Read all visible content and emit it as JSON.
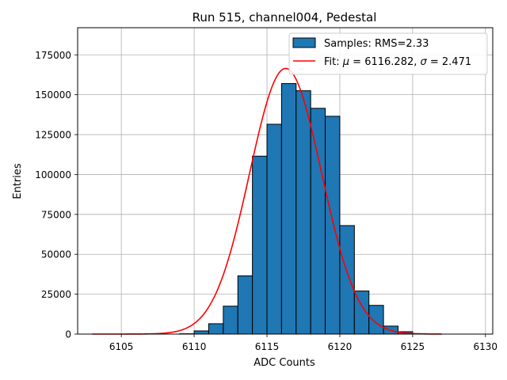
{
  "chart_data": {
    "type": "bar",
    "title": "Run 515, channel004, Pedestal",
    "xlabel": "ADC Counts",
    "ylabel": "Entries",
    "xlim": [
      6102,
      6130.5
    ],
    "ylim": [
      0,
      192000
    ],
    "xticks": [
      6105,
      6110,
      6115,
      6120,
      6125,
      6130
    ],
    "yticks": [
      0,
      25000,
      50000,
      75000,
      100000,
      125000,
      150000,
      175000
    ],
    "grid": true,
    "legend_position": "top-right",
    "bar_color": "#1f77b4",
    "fit_color": "#ff0000",
    "bins": [
      {
        "left": 6109,
        "right": 6110,
        "count": 200
      },
      {
        "left": 6110,
        "right": 6111,
        "count": 2000
      },
      {
        "left": 6111,
        "right": 6112,
        "count": 6500
      },
      {
        "left": 6112,
        "right": 6113,
        "count": 17500
      },
      {
        "left": 6113,
        "right": 6114,
        "count": 36500
      },
      {
        "left": 6114,
        "right": 6115,
        "count": 111500
      },
      {
        "left": 6115,
        "right": 6116,
        "count": 131500
      },
      {
        "left": 6116,
        "right": 6117,
        "count": 157000
      },
      {
        "left": 6117,
        "right": 6118,
        "count": 152500
      },
      {
        "left": 6118,
        "right": 6119,
        "count": 141500
      },
      {
        "left": 6119,
        "right": 6120,
        "count": 136500
      },
      {
        "left": 6120,
        "right": 6121,
        "count": 68000
      },
      {
        "left": 6121,
        "right": 6122,
        "count": 27000
      },
      {
        "left": 6122,
        "right": 6123,
        "count": 18000
      },
      {
        "left": 6123,
        "right": 6124,
        "count": 5000
      },
      {
        "left": 6124,
        "right": 6125,
        "count": 1500
      },
      {
        "left": 6125,
        "right": 6126,
        "count": 300
      }
    ],
    "fit": {
      "mu": 6116.282,
      "sigma": 2.471,
      "amplitude": 166500,
      "x_range": [
        6103,
        6127
      ]
    },
    "legend": [
      {
        "label": "Samples: RMS=2.33",
        "kind": "patch"
      },
      {
        "label_prefix": "Fit: ",
        "mu_symbol": "μ",
        "mu_text": " = 6116.282, ",
        "sigma_symbol": "σ",
        "sigma_text": " = 2.471",
        "kind": "line"
      }
    ]
  }
}
